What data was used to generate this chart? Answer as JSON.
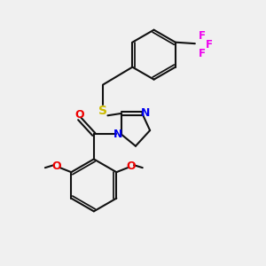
{
  "background_color": "#f0f0f0",
  "atom_colors": {
    "S": "#ccbb00",
    "N": "#0000ee",
    "O": "#ee0000",
    "F": "#ee00ee",
    "C": "#000000"
  },
  "bond_color": "#111111",
  "bond_width": 1.5,
  "figsize": [
    3.0,
    3.0
  ],
  "dpi": 100
}
